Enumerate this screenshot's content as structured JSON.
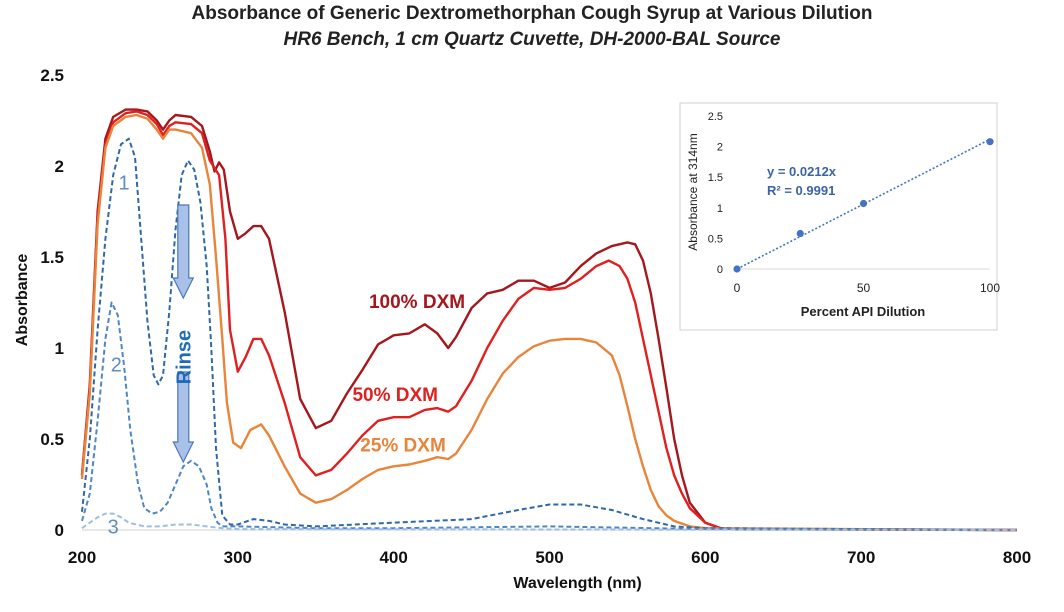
{
  "chart_data": {
    "type": "line",
    "title": "Absorbance of Generic Dextromethorphan Cough Syrup at Various Dilution",
    "subtitle": "HR6 Bench, 1 cm Quartz Cuvette, DH-2000-BAL Source",
    "xlabel": "Wavelength (nm)",
    "ylabel": "Absorbance",
    "xlim": [
      200,
      800
    ],
    "ylim": [
      0,
      2.5
    ],
    "x_ticks": [
      "200",
      "300",
      "400",
      "500",
      "600",
      "700",
      "800"
    ],
    "y_ticks": [
      "0",
      "0.5",
      "1",
      "1.5",
      "2",
      "2.5"
    ],
    "grid": false,
    "series": [
      {
        "name": "100% DXM",
        "color": "#a5171c",
        "style": "solid",
        "points": [
          [
            200,
            0.3
          ],
          [
            205,
            0.8
          ],
          [
            210,
            1.75
          ],
          [
            215,
            2.15
          ],
          [
            220,
            2.27
          ],
          [
            228,
            2.31
          ],
          [
            235,
            2.31
          ],
          [
            242,
            2.3
          ],
          [
            248,
            2.25
          ],
          [
            252,
            2.2
          ],
          [
            256,
            2.25
          ],
          [
            260,
            2.28
          ],
          [
            270,
            2.27
          ],
          [
            277,
            2.22
          ],
          [
            282,
            2.08
          ],
          [
            285,
            1.97
          ],
          [
            288,
            2.02
          ],
          [
            291,
            1.98
          ],
          [
            295,
            1.75
          ],
          [
            300,
            1.6
          ],
          [
            305,
            1.63
          ],
          [
            310,
            1.67
          ],
          [
            315,
            1.67
          ],
          [
            320,
            1.6
          ],
          [
            330,
            1.2
          ],
          [
            340,
            0.72
          ],
          [
            350,
            0.56
          ],
          [
            360,
            0.6
          ],
          [
            370,
            0.75
          ],
          [
            380,
            0.88
          ],
          [
            390,
            1.02
          ],
          [
            400,
            1.07
          ],
          [
            410,
            1.08
          ],
          [
            420,
            1.13
          ],
          [
            428,
            1.08
          ],
          [
            435,
            1.0
          ],
          [
            440,
            1.06
          ],
          [
            450,
            1.22
          ],
          [
            460,
            1.3
          ],
          [
            470,
            1.32
          ],
          [
            480,
            1.37
          ],
          [
            490,
            1.37
          ],
          [
            500,
            1.33
          ],
          [
            510,
            1.36
          ],
          [
            520,
            1.45
          ],
          [
            530,
            1.52
          ],
          [
            540,
            1.56
          ],
          [
            550,
            1.58
          ],
          [
            555,
            1.57
          ],
          [
            560,
            1.48
          ],
          [
            565,
            1.3
          ],
          [
            570,
            1.05
          ],
          [
            575,
            0.78
          ],
          [
            580,
            0.5
          ],
          [
            585,
            0.3
          ],
          [
            590,
            0.15
          ],
          [
            600,
            0.04
          ],
          [
            610,
            0.01
          ],
          [
            620,
            0.005
          ],
          [
            800,
            0.0
          ]
        ]
      },
      {
        "name": "50% DXM",
        "color": "#e02020",
        "style": "solid",
        "points": [
          [
            200,
            0.3
          ],
          [
            205,
            0.78
          ],
          [
            210,
            1.72
          ],
          [
            215,
            2.12
          ],
          [
            220,
            2.24
          ],
          [
            228,
            2.29
          ],
          [
            235,
            2.3
          ],
          [
            242,
            2.28
          ],
          [
            248,
            2.23
          ],
          [
            252,
            2.17
          ],
          [
            256,
            2.22
          ],
          [
            260,
            2.24
          ],
          [
            270,
            2.23
          ],
          [
            277,
            2.18
          ],
          [
            282,
            2.03
          ],
          [
            288,
            1.95
          ],
          [
            292,
            1.6
          ],
          [
            295,
            1.1
          ],
          [
            300,
            0.87
          ],
          [
            305,
            0.95
          ],
          [
            310,
            1.05
          ],
          [
            315,
            1.05
          ],
          [
            320,
            0.96
          ],
          [
            330,
            0.7
          ],
          [
            340,
            0.4
          ],
          [
            350,
            0.3
          ],
          [
            360,
            0.33
          ],
          [
            370,
            0.42
          ],
          [
            380,
            0.52
          ],
          [
            390,
            0.6
          ],
          [
            400,
            0.62
          ],
          [
            410,
            0.62
          ],
          [
            420,
            0.66
          ],
          [
            428,
            0.67
          ],
          [
            435,
            0.65
          ],
          [
            440,
            0.68
          ],
          [
            450,
            0.82
          ],
          [
            460,
            1.0
          ],
          [
            470,
            1.15
          ],
          [
            480,
            1.27
          ],
          [
            490,
            1.33
          ],
          [
            500,
            1.32
          ],
          [
            510,
            1.33
          ],
          [
            520,
            1.38
          ],
          [
            530,
            1.45
          ],
          [
            538,
            1.48
          ],
          [
            545,
            1.45
          ],
          [
            550,
            1.38
          ],
          [
            555,
            1.25
          ],
          [
            560,
            1.05
          ],
          [
            565,
            0.85
          ],
          [
            570,
            0.65
          ],
          [
            575,
            0.45
          ],
          [
            580,
            0.3
          ],
          [
            585,
            0.2
          ],
          [
            590,
            0.12
          ],
          [
            600,
            0.04
          ],
          [
            610,
            0.01
          ],
          [
            620,
            0.005
          ],
          [
            800,
            0.0
          ]
        ]
      },
      {
        "name": "25% DXM",
        "color": "#e8853a",
        "style": "solid",
        "points": [
          [
            200,
            0.28
          ],
          [
            205,
            0.75
          ],
          [
            210,
            1.68
          ],
          [
            215,
            2.1
          ],
          [
            220,
            2.22
          ],
          [
            228,
            2.27
          ],
          [
            235,
            2.28
          ],
          [
            242,
            2.26
          ],
          [
            248,
            2.2
          ],
          [
            252,
            2.15
          ],
          [
            256,
            2.2
          ],
          [
            260,
            2.2
          ],
          [
            270,
            2.18
          ],
          [
            277,
            2.1
          ],
          [
            282,
            1.9
          ],
          [
            286,
            1.5
          ],
          [
            290,
            1.05
          ],
          [
            293,
            0.7
          ],
          [
            297,
            0.48
          ],
          [
            302,
            0.45
          ],
          [
            308,
            0.55
          ],
          [
            315,
            0.58
          ],
          [
            320,
            0.52
          ],
          [
            330,
            0.35
          ],
          [
            340,
            0.2
          ],
          [
            350,
            0.15
          ],
          [
            360,
            0.17
          ],
          [
            370,
            0.22
          ],
          [
            380,
            0.28
          ],
          [
            390,
            0.33
          ],
          [
            400,
            0.35
          ],
          [
            410,
            0.36
          ],
          [
            420,
            0.38
          ],
          [
            428,
            0.4
          ],
          [
            435,
            0.39
          ],
          [
            440,
            0.42
          ],
          [
            450,
            0.55
          ],
          [
            460,
            0.72
          ],
          [
            470,
            0.86
          ],
          [
            480,
            0.95
          ],
          [
            490,
            1.01
          ],
          [
            500,
            1.04
          ],
          [
            510,
            1.05
          ],
          [
            520,
            1.05
          ],
          [
            530,
            1.03
          ],
          [
            540,
            0.96
          ],
          [
            545,
            0.85
          ],
          [
            550,
            0.68
          ],
          [
            555,
            0.5
          ],
          [
            560,
            0.35
          ],
          [
            565,
            0.22
          ],
          [
            570,
            0.13
          ],
          [
            575,
            0.08
          ],
          [
            580,
            0.05
          ],
          [
            590,
            0.02
          ],
          [
            600,
            0.01
          ],
          [
            800,
            0.0
          ]
        ]
      },
      {
        "name": "1",
        "color": "#2e68a8",
        "style": "dashed",
        "points": [
          [
            200,
            0.1
          ],
          [
            205,
            0.5
          ],
          [
            210,
            1.1
          ],
          [
            215,
            1.6
          ],
          [
            220,
            1.95
          ],
          [
            225,
            2.12
          ],
          [
            230,
            2.15
          ],
          [
            234,
            2.05
          ],
          [
            238,
            1.6
          ],
          [
            242,
            1.15
          ],
          [
            246,
            0.85
          ],
          [
            249,
            0.8
          ],
          [
            252,
            0.85
          ],
          [
            256,
            1.2
          ],
          [
            260,
            1.65
          ],
          [
            264,
            1.95
          ],
          [
            268,
            2.03
          ],
          [
            272,
            1.98
          ],
          [
            276,
            1.8
          ],
          [
            280,
            1.45
          ],
          [
            283,
            1.0
          ],
          [
            286,
            0.45
          ],
          [
            290,
            0.08
          ],
          [
            295,
            0.03
          ],
          [
            300,
            0.03
          ],
          [
            310,
            0.06
          ],
          [
            320,
            0.05
          ],
          [
            330,
            0.03
          ],
          [
            350,
            0.02
          ],
          [
            400,
            0.04
          ],
          [
            450,
            0.06
          ],
          [
            480,
            0.11
          ],
          [
            500,
            0.14
          ],
          [
            520,
            0.14
          ],
          [
            540,
            0.11
          ],
          [
            560,
            0.06
          ],
          [
            580,
            0.02
          ],
          [
            600,
            0.01
          ],
          [
            800,
            0.0
          ]
        ]
      },
      {
        "name": "2",
        "color": "#4f86c6",
        "style": "dashed",
        "points": [
          [
            200,
            0.05
          ],
          [
            205,
            0.2
          ],
          [
            210,
            0.6
          ],
          [
            215,
            1.05
          ],
          [
            219,
            1.25
          ],
          [
            223,
            1.18
          ],
          [
            227,
            0.9
          ],
          [
            231,
            0.55
          ],
          [
            236,
            0.25
          ],
          [
            240,
            0.12
          ],
          [
            245,
            0.09
          ],
          [
            250,
            0.1
          ],
          [
            255,
            0.15
          ],
          [
            260,
            0.25
          ],
          [
            265,
            0.35
          ],
          [
            270,
            0.38
          ],
          [
            275,
            0.35
          ],
          [
            280,
            0.25
          ],
          [
            283,
            0.12
          ],
          [
            287,
            0.04
          ],
          [
            290,
            0.02
          ],
          [
            300,
            0.02
          ],
          [
            350,
            0.01
          ],
          [
            400,
            0.01
          ],
          [
            500,
            0.02
          ],
          [
            600,
            0.005
          ],
          [
            800,
            0.0
          ]
        ]
      },
      {
        "name": "3",
        "color": "#9dbfe3",
        "style": "dashed",
        "points": [
          [
            200,
            0.01
          ],
          [
            205,
            0.04
          ],
          [
            210,
            0.07
          ],
          [
            215,
            0.09
          ],
          [
            220,
            0.09
          ],
          [
            225,
            0.07
          ],
          [
            230,
            0.04
          ],
          [
            240,
            0.02
          ],
          [
            250,
            0.02
          ],
          [
            260,
            0.03
          ],
          [
            270,
            0.03
          ],
          [
            280,
            0.02
          ],
          [
            290,
            0.01
          ],
          [
            300,
            0.005
          ],
          [
            800,
            0.0
          ]
        ]
      }
    ],
    "annotations": [
      {
        "text": "100% DXM",
        "x": 415,
        "y": 1.22,
        "color": "#a5171c"
      },
      {
        "text": "50% DXM",
        "x": 401,
        "y": 0.71,
        "color": "#e02020"
      },
      {
        "text": "25% DXM",
        "x": 406,
        "y": 0.43,
        "color": "#e8853a"
      },
      {
        "text": "1",
        "x": 227,
        "y": 1.87,
        "color": "#5f8cc2"
      },
      {
        "text": "2",
        "x": 222,
        "y": 0.87,
        "color": "#5f8cc2"
      },
      {
        "text": "3",
        "x": 220,
        "y": -0.02,
        "color": "#5f8cc2"
      },
      {
        "text": "Rinse",
        "x": 265,
        "y": 0.95,
        "color": "#1f6bb8"
      }
    ],
    "inset": {
      "type": "scatter",
      "xlabel": "Percent API Dilution",
      "ylabel": "Absorbance at 314nm",
      "xlim": [
        0,
        100
      ],
      "ylim": [
        0,
        2.5
      ],
      "x_ticks": [
        "0",
        "50",
        "100"
      ],
      "y_ticks": [
        "0",
        "0.5",
        "1",
        "1.5",
        "2",
        "2.5"
      ],
      "points": [
        [
          0,
          0.0
        ],
        [
          25,
          0.58
        ],
        [
          50,
          1.07
        ],
        [
          100,
          2.08
        ]
      ],
      "trendline": {
        "slope": 0.0212,
        "intercept": 0,
        "style": "dotted"
      },
      "equation": "y = 0.0212x",
      "r_squared": "R² = 0.9991",
      "color": "#4472c4"
    }
  }
}
